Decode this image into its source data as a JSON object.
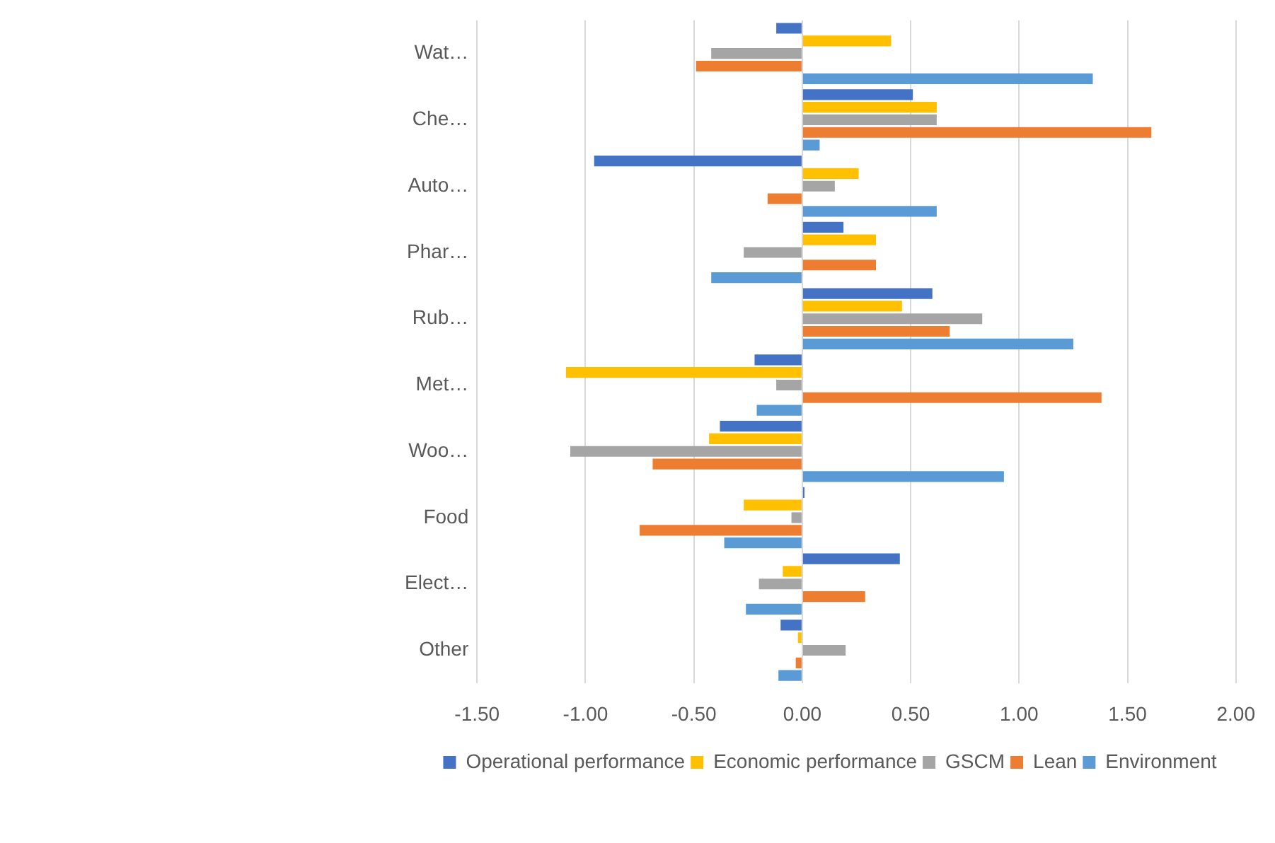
{
  "chart_data": {
    "type": "bar",
    "orientation": "horizontal",
    "categories": [
      "Wat…",
      "Che…",
      "Auto…",
      "Phar…",
      "Rub…",
      "Met…",
      "Woo…",
      "Food",
      "Elect…",
      "Other"
    ],
    "series": [
      {
        "name": "Operational performance",
        "color": "#4472c4",
        "values": [
          -0.12,
          0.51,
          -0.96,
          0.19,
          0.6,
          -0.22,
          -0.38,
          0.01,
          0.45,
          -0.1
        ]
      },
      {
        "name": "Economic performance",
        "color": "#ffc000",
        "values": [
          0.41,
          0.62,
          0.26,
          0.34,
          0.46,
          -1.09,
          -0.43,
          -0.27,
          -0.09,
          -0.02
        ]
      },
      {
        "name": "GSCM",
        "color": "#a5a5a5",
        "values": [
          -0.42,
          0.62,
          0.15,
          -0.27,
          0.83,
          -0.12,
          -1.07,
          -0.05,
          -0.2,
          0.2
        ]
      },
      {
        "name": "Lean",
        "color": "#ed7d31",
        "values": [
          -0.49,
          1.61,
          -0.16,
          0.34,
          0.68,
          1.38,
          -0.69,
          -0.75,
          0.29,
          -0.03
        ]
      },
      {
        "name": "Environment",
        "color": "#5b9bd5",
        "values": [
          1.34,
          0.08,
          0.62,
          -0.42,
          1.25,
          -0.21,
          0.93,
          -0.36,
          -0.26,
          -0.11
        ]
      }
    ],
    "xlim": [
      -1.5,
      2.0
    ],
    "xticks": [
      {
        "value": -1.5,
        "label": "-1.50"
      },
      {
        "value": -1.0,
        "label": "-1.00"
      },
      {
        "value": -0.5,
        "label": "-0.50"
      },
      {
        "value": 0,
        "label": "0.00"
      },
      {
        "value": 0.5,
        "label": "0.50"
      },
      {
        "value": 1.0,
        "label": "1.00"
      },
      {
        "value": 1.5,
        "label": "1.50"
      },
      {
        "value": 2.0,
        "label": "2.00"
      }
    ],
    "grid": "x",
    "legend": "bottom"
  }
}
